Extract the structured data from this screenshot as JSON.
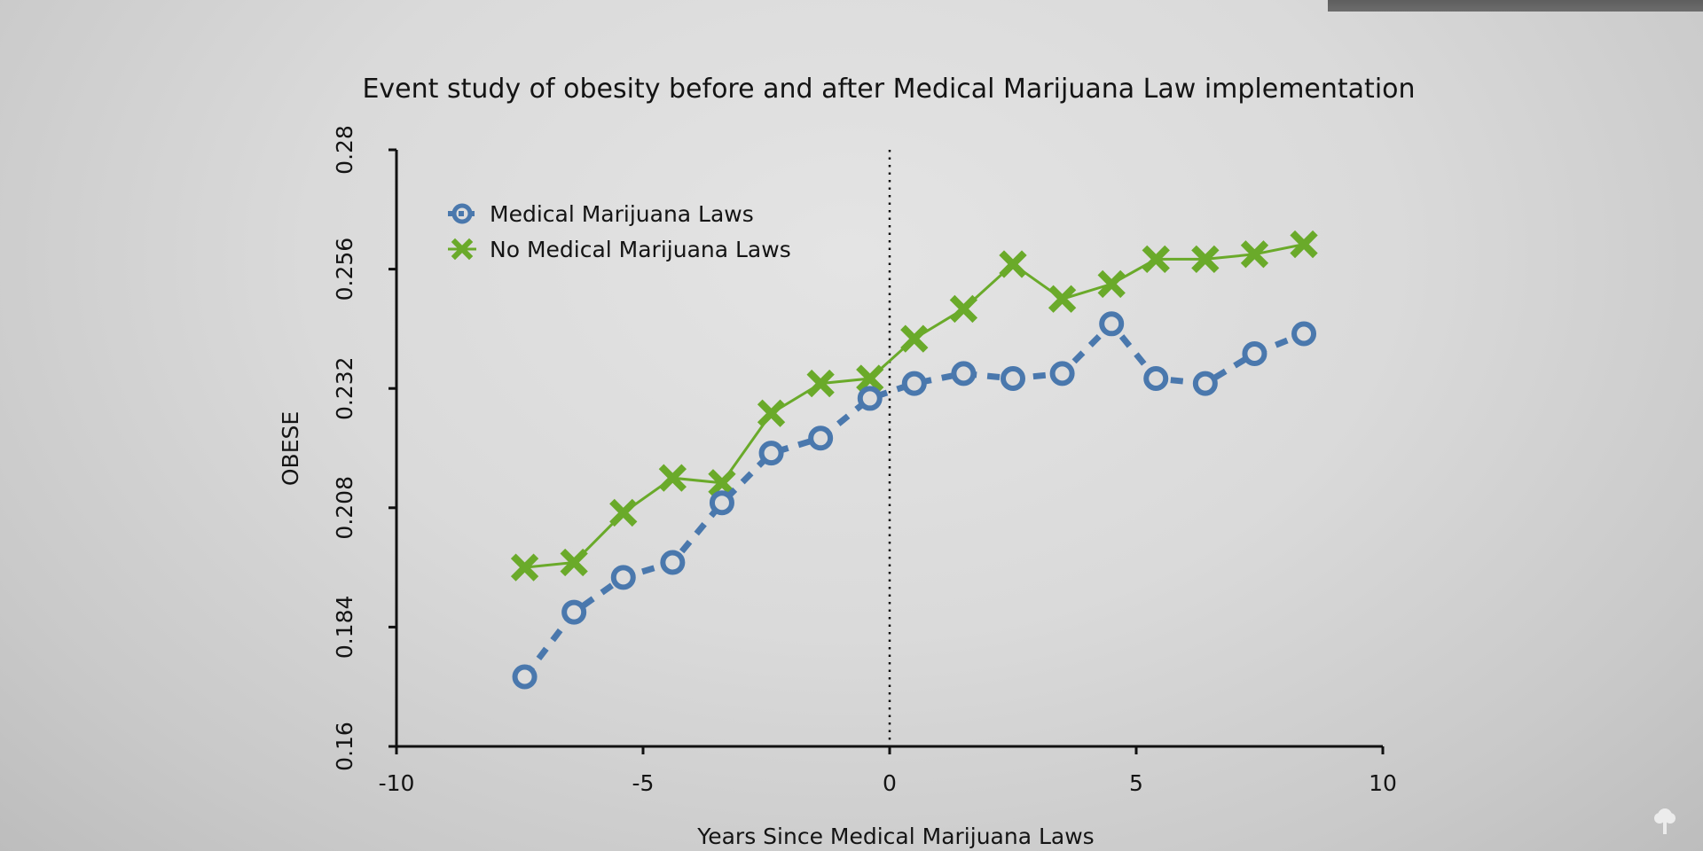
{
  "chart_data": {
    "type": "line",
    "title": "Event study of obesity before and after Medical Marijuana Law implementation",
    "xlabel": "Years Since Medical Marijuana Laws",
    "ylabel": "OBESE",
    "xlim": [
      -10,
      10
    ],
    "ylim": [
      0.16,
      0.28
    ],
    "xticks": [
      -10,
      -5,
      0,
      5,
      10
    ],
    "xtick_labels": [
      "-10",
      "-5",
      "0",
      "5",
      "10"
    ],
    "yticks": [
      0.16,
      0.184,
      0.208,
      0.232,
      0.256,
      0.28
    ],
    "ytick_labels": [
      "0.16",
      "0.184",
      "0.208",
      "0.232",
      "0.256",
      "0.28"
    ],
    "grid": false,
    "legend_position": "top-left",
    "reference_line": {
      "x": 0,
      "style": "dotted"
    },
    "x": [
      -7.4,
      -6.4,
      -5.4,
      -4.4,
      -3.4,
      -2.4,
      -1.4,
      -0.4,
      0.5,
      1.5,
      2.5,
      3.5,
      4.5,
      5.4,
      6.4,
      7.4,
      8.4
    ],
    "series": [
      {
        "name": "Medical Marijuana Laws",
        "marker": "circle",
        "line_style": "dashed",
        "color": "#4a78ad",
        "values": [
          0.174,
          0.187,
          0.194,
          0.197,
          0.209,
          0.219,
          0.222,
          0.23,
          0.233,
          0.235,
          0.234,
          0.235,
          0.245,
          0.234,
          0.233,
          0.239,
          0.243
        ]
      },
      {
        "name": "No Medical Marijuana Laws",
        "marker": "x",
        "line_style": "solid",
        "color": "#6aaa2a",
        "values": [
          0.196,
          0.197,
          0.207,
          0.214,
          0.213,
          0.227,
          0.233,
          0.234,
          0.242,
          0.248,
          0.257,
          0.25,
          0.253,
          0.258,
          0.258,
          0.259,
          0.261
        ]
      }
    ]
  }
}
